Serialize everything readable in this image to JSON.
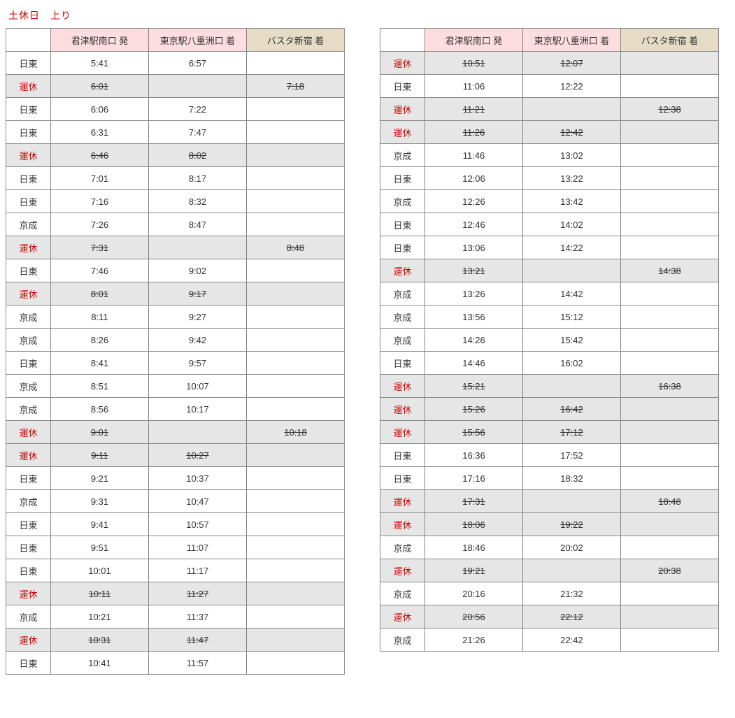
{
  "title": "土休日　上り",
  "columns": {
    "op_blank": "",
    "departure": "君津駅南口 発",
    "arrival1": "東京駅八重洲口 着",
    "arrival2": "バスタ新宿 着"
  },
  "operator_labels": {
    "nitto": "日東",
    "keisei": "京成",
    "suspended": "運休"
  },
  "colors": {
    "title": "#d00000",
    "suspended_text": "#d00000",
    "header_pink": "#fddde0",
    "header_beige": "#e6dcc6",
    "suspended_bg": "#e6e6e6",
    "border": "#888888"
  },
  "left_rows": [
    {
      "op": "nitto",
      "dep": "5:41",
      "a1": "6:57",
      "a2": "",
      "suspended": false
    },
    {
      "op": "suspended",
      "dep": "6:01",
      "a1": "",
      "a2": "7:18",
      "suspended": true
    },
    {
      "op": "nitto",
      "dep": "6:06",
      "a1": "7:22",
      "a2": "",
      "suspended": false
    },
    {
      "op": "nitto",
      "dep": "6:31",
      "a1": "7:47",
      "a2": "",
      "suspended": false
    },
    {
      "op": "suspended",
      "dep": "6:46",
      "a1": "8:02",
      "a2": "",
      "suspended": true
    },
    {
      "op": "nitto",
      "dep": "7:01",
      "a1": "8:17",
      "a2": "",
      "suspended": false
    },
    {
      "op": "nitto",
      "dep": "7:16",
      "a1": "8:32",
      "a2": "",
      "suspended": false
    },
    {
      "op": "keisei",
      "dep": "7:26",
      "a1": "8:47",
      "a2": "",
      "suspended": false
    },
    {
      "op": "suspended",
      "dep": "7:31",
      "a1": "",
      "a2": "8:48",
      "suspended": true
    },
    {
      "op": "nitto",
      "dep": "7:46",
      "a1": "9:02",
      "a2": "",
      "suspended": false
    },
    {
      "op": "suspended",
      "dep": "8:01",
      "a1": "9:17",
      "a2": "",
      "suspended": true
    },
    {
      "op": "keisei",
      "dep": "8:11",
      "a1": "9:27",
      "a2": "",
      "suspended": false
    },
    {
      "op": "keisei",
      "dep": "8:26",
      "a1": "9:42",
      "a2": "",
      "suspended": false
    },
    {
      "op": "nitto",
      "dep": "8:41",
      "a1": "9:57",
      "a2": "",
      "suspended": false
    },
    {
      "op": "keisei",
      "dep": "8:51",
      "a1": "10:07",
      "a2": "",
      "suspended": false
    },
    {
      "op": "keisei",
      "dep": "8:56",
      "a1": "10:17",
      "a2": "",
      "suspended": false
    },
    {
      "op": "suspended",
      "dep": "9:01",
      "a1": "",
      "a2": "10:18",
      "suspended": true
    },
    {
      "op": "suspended",
      "dep": "9:11",
      "a1": "10:27",
      "a2": "",
      "suspended": true
    },
    {
      "op": "nitto",
      "dep": "9:21",
      "a1": "10:37",
      "a2": "",
      "suspended": false
    },
    {
      "op": "keisei",
      "dep": "9:31",
      "a1": "10:47",
      "a2": "",
      "suspended": false
    },
    {
      "op": "nitto",
      "dep": "9:41",
      "a1": "10:57",
      "a2": "",
      "suspended": false
    },
    {
      "op": "nitto",
      "dep": "9:51",
      "a1": "11:07",
      "a2": "",
      "suspended": false
    },
    {
      "op": "nitto",
      "dep": "10:01",
      "a1": "11:17",
      "a2": "",
      "suspended": false
    },
    {
      "op": "suspended",
      "dep": "10:11",
      "a1": "11:27",
      "a2": "",
      "suspended": true
    },
    {
      "op": "keisei",
      "dep": "10:21",
      "a1": "11:37",
      "a2": "",
      "suspended": false
    },
    {
      "op": "suspended",
      "dep": "10:31",
      "a1": "11:47",
      "a2": "",
      "suspended": true
    },
    {
      "op": "nitto",
      "dep": "10:41",
      "a1": "11:57",
      "a2": "",
      "suspended": false
    }
  ],
  "right_rows": [
    {
      "op": "suspended",
      "dep": "10:51",
      "a1": "12:07",
      "a2": "",
      "suspended": true
    },
    {
      "op": "nitto",
      "dep": "11:06",
      "a1": "12:22",
      "a2": "",
      "suspended": false
    },
    {
      "op": "suspended",
      "dep": "11:21",
      "a1": "",
      "a2": "12:38",
      "suspended": true
    },
    {
      "op": "suspended",
      "dep": "11:26",
      "a1": "12:42",
      "a2": "",
      "suspended": true
    },
    {
      "op": "keisei",
      "dep": "11:46",
      "a1": "13:02",
      "a2": "",
      "suspended": false
    },
    {
      "op": "nitto",
      "dep": "12:06",
      "a1": "13:22",
      "a2": "",
      "suspended": false
    },
    {
      "op": "keisei",
      "dep": "12:26",
      "a1": "13:42",
      "a2": "",
      "suspended": false
    },
    {
      "op": "nitto",
      "dep": "12:46",
      "a1": "14:02",
      "a2": "",
      "suspended": false
    },
    {
      "op": "nitto",
      "dep": "13:06",
      "a1": "14:22",
      "a2": "",
      "suspended": false
    },
    {
      "op": "suspended",
      "dep": "13:21",
      "a1": "",
      "a2": "14:38",
      "suspended": true
    },
    {
      "op": "keisei",
      "dep": "13:26",
      "a1": "14:42",
      "a2": "",
      "suspended": false
    },
    {
      "op": "keisei",
      "dep": "13:56",
      "a1": "15:12",
      "a2": "",
      "suspended": false
    },
    {
      "op": "keisei",
      "dep": "14:26",
      "a1": "15:42",
      "a2": "",
      "suspended": false
    },
    {
      "op": "nitto",
      "dep": "14:46",
      "a1": "16:02",
      "a2": "",
      "suspended": false
    },
    {
      "op": "suspended",
      "dep": "15:21",
      "a1": "",
      "a2": "16:38",
      "suspended": true
    },
    {
      "op": "suspended",
      "dep": "15:26",
      "a1": "16:42",
      "a2": "",
      "suspended": true
    },
    {
      "op": "suspended",
      "dep": "15:56",
      "a1": "17:12",
      "a2": "",
      "suspended": true
    },
    {
      "op": "nitto",
      "dep": "16:36",
      "a1": "17:52",
      "a2": "",
      "suspended": false
    },
    {
      "op": "nitto",
      "dep": "17:16",
      "a1": "18:32",
      "a2": "",
      "suspended": false
    },
    {
      "op": "suspended",
      "dep": "17:31",
      "a1": "",
      "a2": "18:48",
      "suspended": true
    },
    {
      "op": "suspended",
      "dep": "18:06",
      "a1": "19:22",
      "a2": "",
      "suspended": true
    },
    {
      "op": "keisei",
      "dep": "18:46",
      "a1": "20:02",
      "a2": "",
      "suspended": false
    },
    {
      "op": "suspended",
      "dep": "19:21",
      "a1": "",
      "a2": "20:38",
      "suspended": true
    },
    {
      "op": "keisei",
      "dep": "20:16",
      "a1": "21:32",
      "a2": "",
      "suspended": false
    },
    {
      "op": "suspended",
      "dep": "20:56",
      "a1": "22:12",
      "a2": "",
      "suspended": true
    },
    {
      "op": "keisei",
      "dep": "21:26",
      "a1": "22:42",
      "a2": "",
      "suspended": false
    }
  ]
}
